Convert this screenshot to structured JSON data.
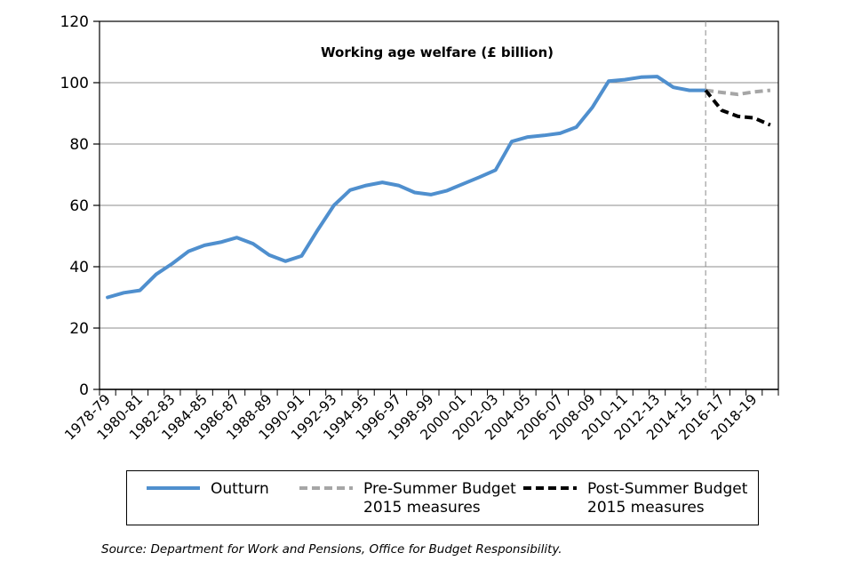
{
  "chart_data": {
    "type": "line",
    "title": "Working age welfare (£ billion)",
    "xlabel": "",
    "ylabel": "",
    "ylim": [
      0,
      120
    ],
    "yticks": [
      0,
      20,
      40,
      60,
      80,
      100,
      120
    ],
    "grid": "horizontal",
    "years": [
      "1978-79",
      "1979-80",
      "1980-81",
      "1981-82",
      "1982-83",
      "1983-84",
      "1984-85",
      "1985-86",
      "1986-87",
      "1987-88",
      "1988-89",
      "1989-90",
      "1990-91",
      "1991-92",
      "1992-93",
      "1993-94",
      "1994-95",
      "1995-96",
      "1996-97",
      "1997-98",
      "1998-99",
      "1999-00",
      "2000-01",
      "2001-02",
      "2002-03",
      "2003-04",
      "2004-05",
      "2005-06",
      "2006-07",
      "2007-08",
      "2008-09",
      "2009-10",
      "2010-11",
      "2011-12",
      "2012-13",
      "2013-14",
      "2014-15",
      "2015-16",
      "2016-17",
      "2017-18",
      "2018-19",
      "2019-20"
    ],
    "tick_labels": [
      "1978-79",
      "1980-81",
      "1982-83",
      "1984-85",
      "1986-87",
      "1988-89",
      "1990-91",
      "1992-93",
      "1994-95",
      "1996-97",
      "1998-99",
      "2000-01",
      "2002-03",
      "2004-05",
      "2006-07",
      "2008-09",
      "2010-11",
      "2012-13",
      "2014-15",
      "2016-17",
      "2018-19"
    ],
    "divider_after": "2015-16",
    "series": [
      {
        "name": "Outturn",
        "color": "#4f8fce",
        "style": "solid",
        "x": [
          "1978-79",
          "1979-80",
          "1980-81",
          "1981-82",
          "1982-83",
          "1983-84",
          "1984-85",
          "1985-86",
          "1986-87",
          "1987-88",
          "1988-89",
          "1989-90",
          "1990-91",
          "1991-92",
          "1992-93",
          "1993-94",
          "1994-95",
          "1995-96",
          "1996-97",
          "1997-98",
          "1998-99",
          "1999-00",
          "2000-01",
          "2001-02",
          "2002-03",
          "2003-04",
          "2004-05",
          "2005-06",
          "2006-07",
          "2007-08",
          "2008-09",
          "2009-10",
          "2010-11",
          "2011-12",
          "2012-13",
          "2013-14",
          "2014-15",
          "2015-16"
        ],
        "values": [
          30,
          31.5,
          32.3,
          37.5,
          41,
          45,
          47,
          48,
          49.5,
          47.5,
          43.8,
          41.8,
          43.5,
          52,
          60,
          65,
          66.5,
          67.5,
          66.5,
          64.2,
          63.5,
          64.8,
          67,
          69.2,
          71.5,
          80.8,
          82.3,
          82.8,
          83.5,
          85.5,
          92,
          100.5,
          101,
          101.8,
          102,
          98.5,
          97.5,
          97.5
        ]
      },
      {
        "name": "Pre-Summer Budget 2015 measures",
        "color": "#a6a6a6",
        "style": "dashed",
        "x": [
          "2015-16",
          "2016-17",
          "2017-18",
          "2018-19",
          "2019-20"
        ],
        "values": [
          97.5,
          96.8,
          96.2,
          97,
          97.5
        ]
      },
      {
        "name": "Post-Summer Budget 2015 measures",
        "color": "#000000",
        "style": "dashed",
        "x": [
          "2015-16",
          "2016-17",
          "2017-18",
          "2018-19",
          "2019-20"
        ],
        "values": [
          97.5,
          91,
          89,
          88.5,
          86.2
        ]
      }
    ]
  },
  "legend": {
    "outturn": "Outturn",
    "pre": "Pre-Summer Budget\n2015 measures",
    "post": "Post-Summer Budget\n2015 measures"
  },
  "source": "Source:  Department for Work and Pensions, Office for Budget Responsibility."
}
